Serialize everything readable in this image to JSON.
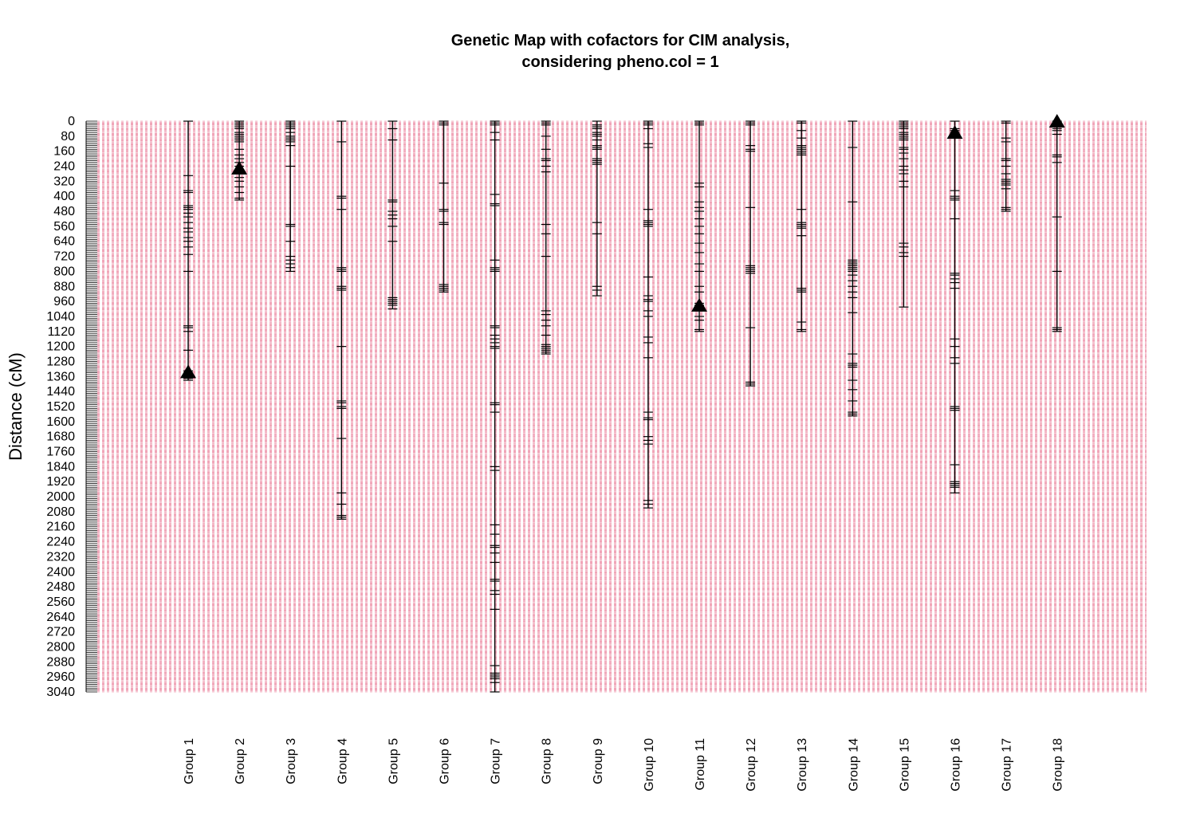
{
  "chart_data": {
    "type": "genetic-map",
    "title_line1": "Genetic Map with cofactors for CIM analysis,",
    "title_line2": "considering pheno.col =  1",
    "ylabel": "Distance (cM)",
    "ylim": [
      0,
      3040
    ],
    "y_reversed": true,
    "yticks": [
      0,
      80,
      160,
      240,
      320,
      400,
      480,
      560,
      640,
      720,
      800,
      880,
      960,
      1040,
      1120,
      1200,
      1280,
      1360,
      1440,
      1520,
      1600,
      1680,
      1760,
      1840,
      1920,
      2000,
      2080,
      2160,
      2240,
      2320,
      2400,
      2480,
      2560,
      2640,
      2720,
      2800,
      2880,
      2960,
      3040
    ],
    "ytick_labels": [
      "0",
      "80",
      "160",
      "240",
      "320",
      "400",
      "480",
      "560",
      "640",
      "720",
      "800",
      "880",
      "960",
      "1040",
      "1120",
      "1200",
      "1280",
      "1360",
      "1440",
      "1520",
      "1600",
      "1680",
      "1760",
      "1840",
      "1920",
      "2000",
      "2080",
      "2160",
      "2240",
      "2320",
      "2400",
      "2480",
      "2560",
      "2640",
      "2720",
      "2800",
      "2880",
      "2960",
      "3040"
    ],
    "grid": "dashed",
    "grid_color": "#e8728f",
    "line_color": "#000000",
    "groups": [
      {
        "name": "Group 1",
        "length": 1380,
        "cofactors": [
          1335
        ],
        "markers": [
          0,
          290,
          370,
          380,
          450,
          460,
          470,
          490,
          510,
          540,
          570,
          590,
          620,
          640,
          670,
          710,
          800,
          1090,
          1100,
          1120,
          1220,
          1330,
          1340,
          1350,
          1360,
          1370,
          1380
        ]
      },
      {
        "name": "Group 2",
        "length": 420,
        "cofactors": [
          250
        ],
        "markers": [
          0,
          10,
          20,
          30,
          40,
          60,
          70,
          80,
          90,
          100,
          110,
          150,
          180,
          200,
          220,
          240,
          260,
          280,
          300,
          320,
          350,
          380,
          410,
          420
        ]
      },
      {
        "name": "Group 3",
        "length": 800,
        "cofactors": [],
        "markers": [
          0,
          10,
          20,
          30,
          40,
          60,
          80,
          90,
          100,
          110,
          130,
          240,
          550,
          560,
          640,
          720,
          740,
          760,
          780,
          800
        ]
      },
      {
        "name": "Group 4",
        "length": 2120,
        "cofactors": [],
        "markers": [
          0,
          110,
          400,
          410,
          470,
          780,
          790,
          800,
          880,
          890,
          900,
          1200,
          1490,
          1500,
          1520,
          1530,
          1690,
          1980,
          2040,
          2100,
          2110,
          2120
        ]
      },
      {
        "name": "Group 5",
        "length": 1000,
        "cofactors": [],
        "markers": [
          0,
          40,
          100,
          420,
          430,
          480,
          500,
          520,
          560,
          640,
          940,
          950,
          960,
          970,
          980,
          1000
        ]
      },
      {
        "name": "Group 6",
        "length": 910,
        "cofactors": [],
        "markers": [
          0,
          10,
          20,
          330,
          470,
          480,
          540,
          550,
          870,
          880,
          890,
          900,
          910
        ]
      },
      {
        "name": "Group 7",
        "length": 3040,
        "cofactors": [],
        "markers": [
          0,
          10,
          20,
          60,
          100,
          390,
          440,
          450,
          740,
          780,
          790,
          800,
          1090,
          1100,
          1140,
          1160,
          1180,
          1200,
          1210,
          1500,
          1510,
          1550,
          1840,
          1860,
          2150,
          2200,
          2260,
          2270,
          2300,
          2350,
          2440,
          2450,
          2500,
          2520,
          2600,
          2900,
          2940,
          2950,
          2960,
          2970,
          2990,
          3040
        ]
      },
      {
        "name": "Group 8",
        "length": 1240,
        "cofactors": [],
        "markers": [
          0,
          10,
          20,
          80,
          150,
          200,
          210,
          240,
          270,
          550,
          600,
          720,
          1010,
          1030,
          1060,
          1090,
          1140,
          1190,
          1200,
          1210,
          1220,
          1230,
          1240
        ]
      },
      {
        "name": "Group 9",
        "length": 930,
        "cofactors": [],
        "markers": [
          0,
          20,
          30,
          40,
          60,
          70,
          80,
          100,
          130,
          140,
          150,
          200,
          210,
          220,
          230,
          540,
          600,
          880,
          900,
          930
        ]
      },
      {
        "name": "Group 10",
        "length": 2060,
        "cofactors": [],
        "markers": [
          0,
          10,
          20,
          40,
          120,
          140,
          470,
          530,
          540,
          550,
          560,
          830,
          930,
          950,
          960,
          1010,
          1040,
          1150,
          1180,
          1260,
          1550,
          1580,
          1590,
          1680,
          1700,
          1720,
          2020,
          2040,
          2060
        ]
      },
      {
        "name": "Group 11",
        "length": 1120,
        "cofactors": [
          980
        ],
        "markers": [
          0,
          10,
          20,
          330,
          350,
          430,
          460,
          480,
          520,
          560,
          600,
          650,
          700,
          760,
          800,
          880,
          910,
          970,
          980,
          990,
          1010,
          1040,
          1060,
          1110,
          1120
        ]
      },
      {
        "name": "Group 12",
        "length": 1410,
        "cofactors": [],
        "markers": [
          0,
          10,
          20,
          130,
          150,
          160,
          460,
          770,
          780,
          790,
          800,
          810,
          1100,
          1390,
          1400,
          1410
        ]
      },
      {
        "name": "Group 13",
        "length": 1120,
        "cofactors": [],
        "markers": [
          0,
          10,
          50,
          90,
          130,
          140,
          150,
          160,
          170,
          180,
          470,
          540,
          550,
          560,
          570,
          610,
          890,
          900,
          910,
          1070,
          1110,
          1120
        ]
      },
      {
        "name": "Group 14",
        "length": 1570,
        "cofactors": [],
        "markers": [
          0,
          140,
          430,
          740,
          750,
          760,
          770,
          780,
          790,
          800,
          820,
          850,
          880,
          910,
          940,
          1020,
          1240,
          1290,
          1300,
          1310,
          1380,
          1430,
          1490,
          1550,
          1560,
          1570
        ]
      },
      {
        "name": "Group 15",
        "length": 990,
        "cofactors": [],
        "markers": [
          0,
          10,
          20,
          30,
          40,
          60,
          70,
          80,
          90,
          100,
          140,
          150,
          170,
          200,
          240,
          260,
          280,
          320,
          350,
          650,
          670,
          700,
          720,
          990
        ]
      },
      {
        "name": "Group 16",
        "length": 1980,
        "cofactors": [
          60
        ],
        "markers": [
          0,
          40,
          50,
          60,
          70,
          80,
          370,
          400,
          410,
          420,
          520,
          810,
          820,
          840,
          860,
          890,
          1160,
          1200,
          1260,
          1290,
          1520,
          1530,
          1540,
          1830,
          1920,
          1930,
          1940,
          1950,
          1980
        ]
      },
      {
        "name": "Group 17",
        "length": 480,
        "cofactors": [],
        "markers": [
          0,
          10,
          90,
          110,
          200,
          210,
          240,
          280,
          310,
          320,
          330,
          340,
          360,
          460,
          470,
          480
        ]
      },
      {
        "name": "Group 18",
        "length": 1120,
        "cofactors": [
          0
        ],
        "markers": [
          0,
          10,
          40,
          50,
          70,
          180,
          190,
          220,
          510,
          800,
          1100,
          1110,
          1120
        ]
      }
    ]
  }
}
